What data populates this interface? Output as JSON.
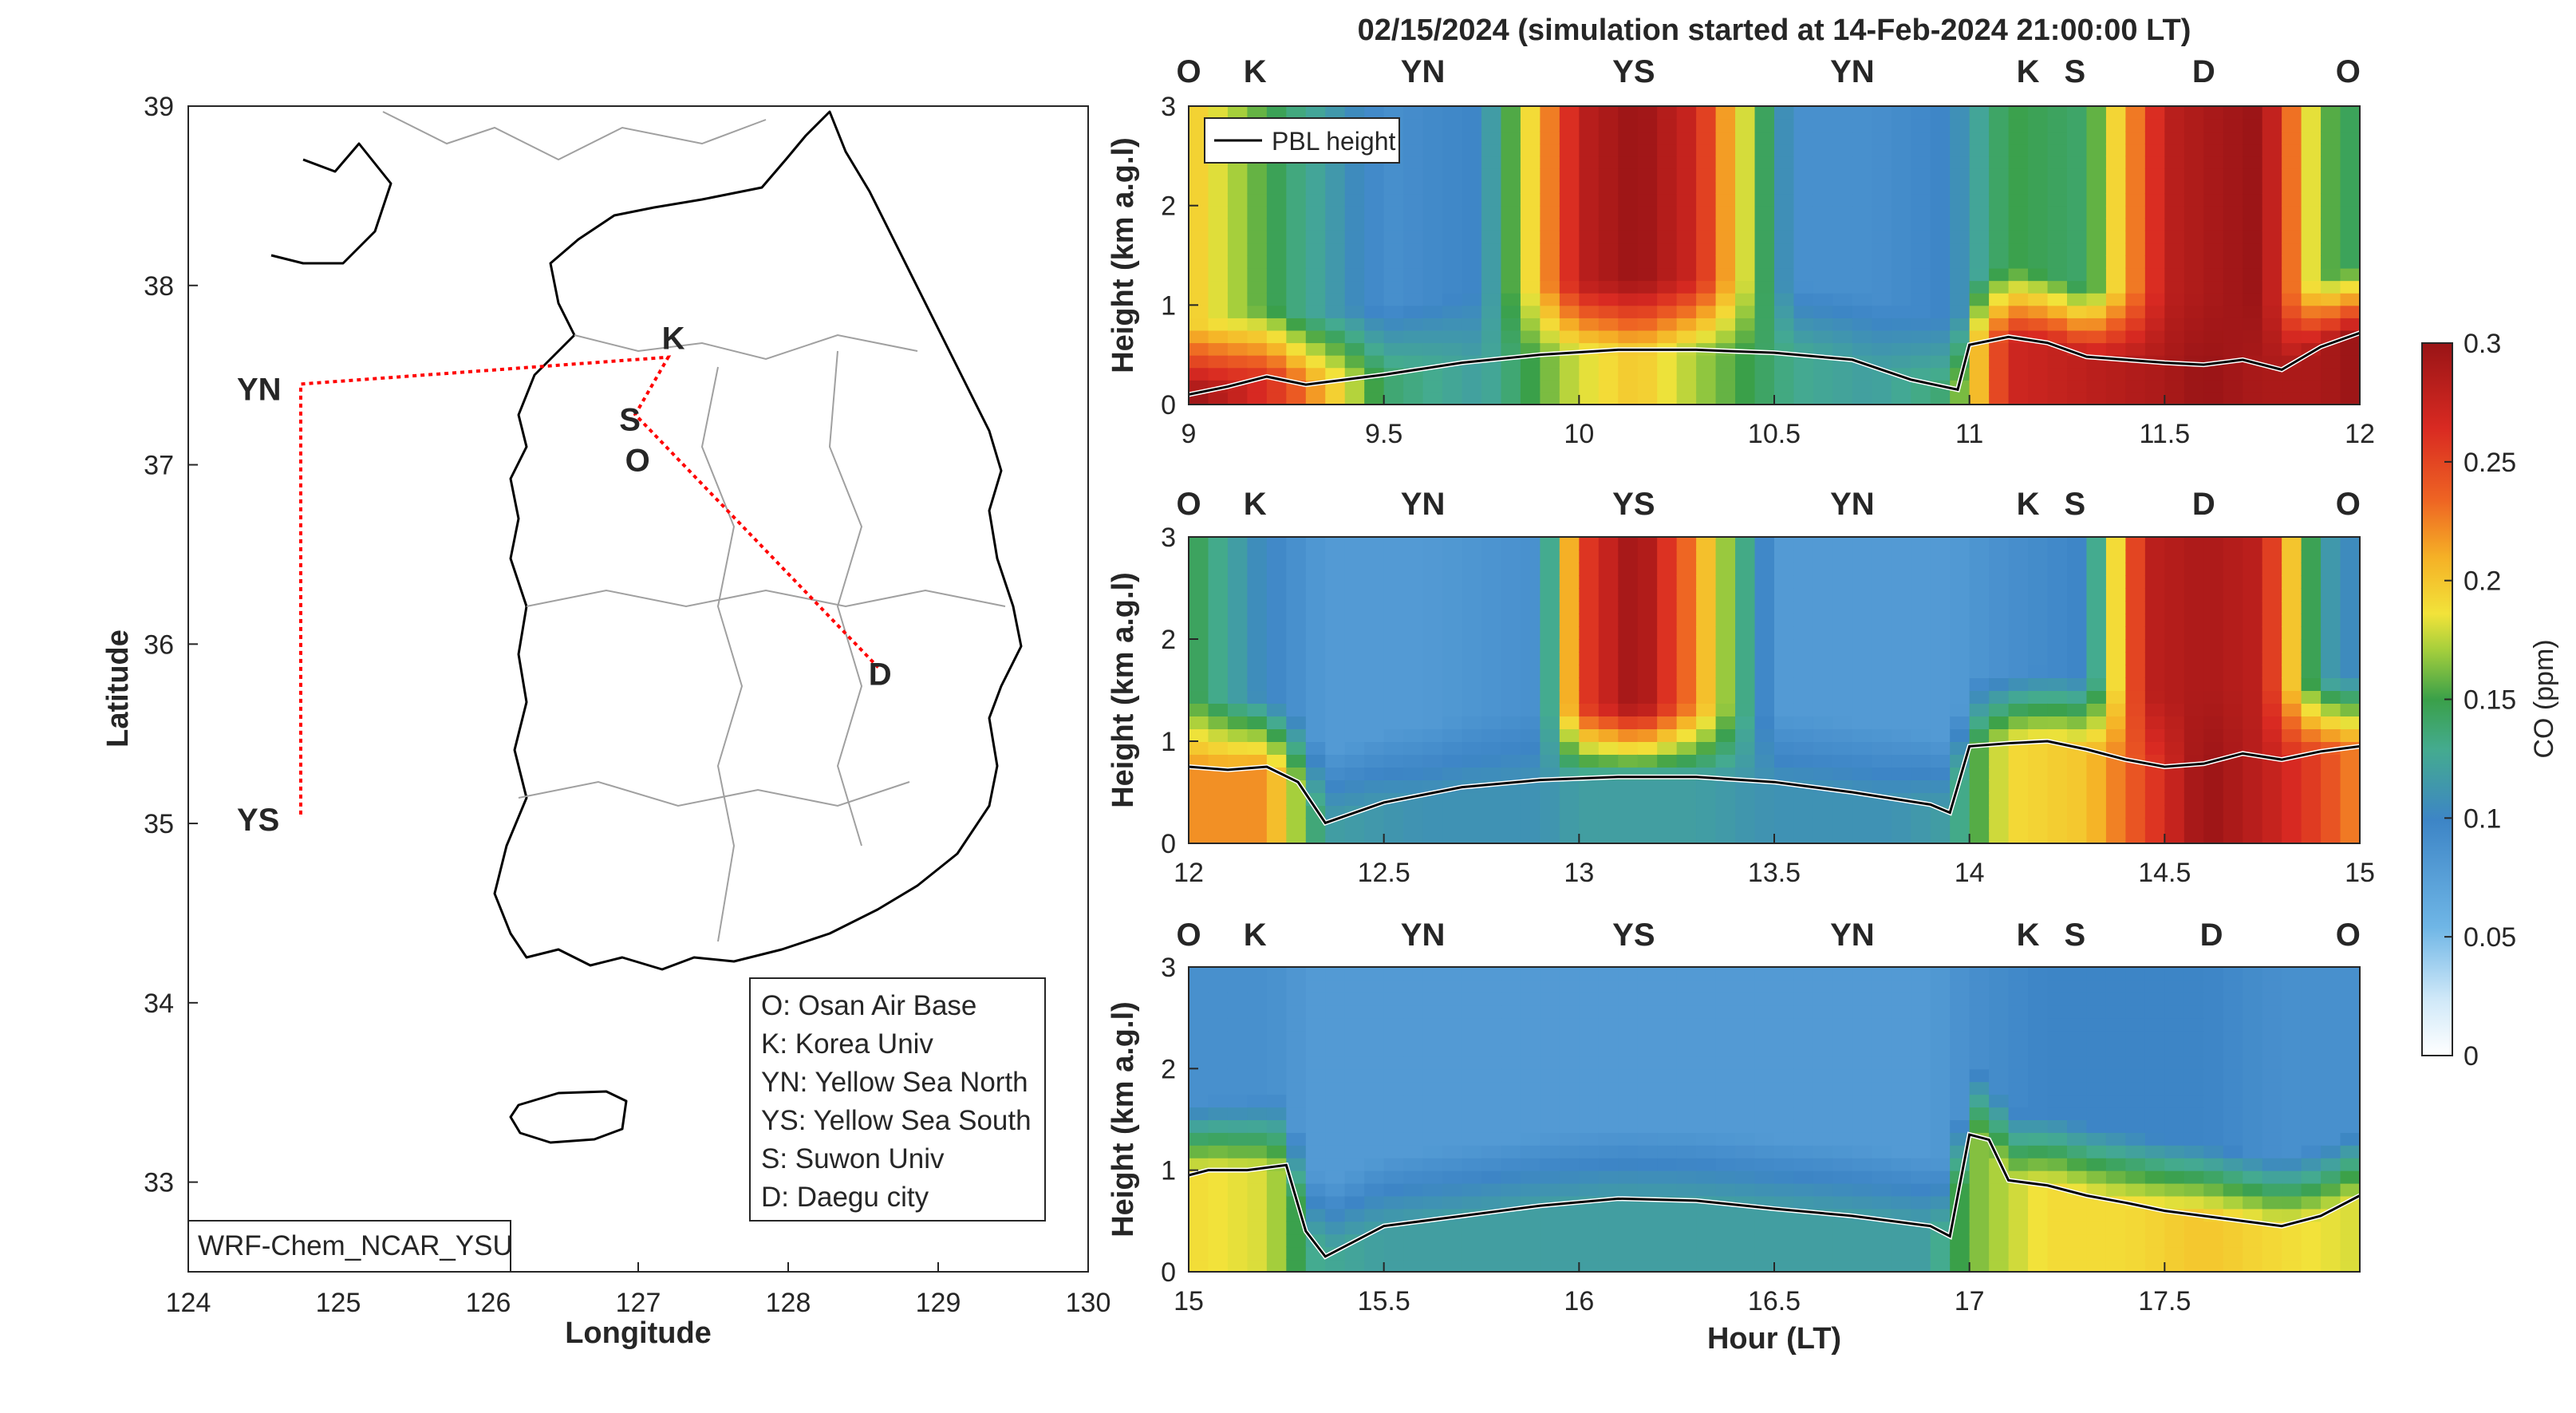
{
  "title": "02/15/2024 (simulation started at 14-Feb-2024 21:00:00 LT)",
  "colors": {
    "O": "#000000",
    "K": "#4db8ea",
    "YN": "#6fab2f",
    "YS": "#f0b428",
    "S": "#7b2d8e",
    "D": "#e05a1a",
    "track": "#ff0000",
    "pbl": "#000000"
  },
  "map": {
    "xlabel": "Longitude",
    "ylabel": "Latitude",
    "x_ticks": [
      "124",
      "125",
      "126",
      "127",
      "128",
      "129",
      "130"
    ],
    "y_ticks": [
      "33",
      "34",
      "35",
      "36",
      "37",
      "38",
      "39"
    ],
    "xlim": [
      124,
      130
    ],
    "ylim": [
      32.5,
      39
    ],
    "model_label": "WRF-Chem_NCAR_YSU",
    "legend": [
      "O: Osan Air Base",
      "K: Korea Univ",
      "YN: Yellow Sea North",
      "YS: Yellow Sea South",
      "S: Suwon Univ",
      "D: Daegu city"
    ],
    "sites": [
      {
        "key": "YN",
        "label": "YN",
        "lon": 124.75,
        "lat": 37.45
      },
      {
        "key": "YS",
        "label": "YS",
        "lon": 124.75,
        "lat": 35.05
      },
      {
        "key": "K",
        "label": "K",
        "lon": 127.2,
        "lat": 37.6
      },
      {
        "key": "S",
        "label": "S",
        "lon": 126.98,
        "lat": 37.28
      },
      {
        "key": "O",
        "label": "O",
        "lon": 127.03,
        "lat": 37.09
      },
      {
        "key": "D",
        "label": "D",
        "lon": 128.6,
        "lat": 35.87
      }
    ]
  },
  "chart_data": [
    {
      "type": "heatmap",
      "xlabel": "",
      "ylabel": "Height (km a.g.l)",
      "xlim": [
        9,
        12
      ],
      "ylim": [
        0,
        3
      ],
      "x_ticks": [
        "9",
        "9.5",
        "10",
        "10.5",
        "11",
        "11.5",
        "12"
      ],
      "y_ticks": [
        "0",
        "1",
        "2",
        "3"
      ],
      "site_labels": [
        {
          "label": "O",
          "key": "O",
          "t": 9.0
        },
        {
          "label": "K",
          "key": "K",
          "t": 9.17
        },
        {
          "label": "YN",
          "key": "YN",
          "t": 9.6
        },
        {
          "label": "YS",
          "key": "YS",
          "t": 10.14
        },
        {
          "label": "YN",
          "key": "YN",
          "t": 10.7
        },
        {
          "label": "K",
          "key": "K",
          "t": 11.15
        },
        {
          "label": "S",
          "key": "S",
          "t": 11.27
        },
        {
          "label": "D",
          "key": "D",
          "t": 11.6
        },
        {
          "label": "O",
          "key": "O",
          "t": 11.97
        }
      ],
      "legend": "PBL height",
      "pbl_height": {
        "x": [
          9.0,
          9.1,
          9.2,
          9.3,
          9.5,
          9.7,
          9.9,
          10.1,
          10.3,
          10.5,
          10.7,
          10.85,
          10.97,
          11.0,
          11.1,
          11.2,
          11.3,
          11.4,
          11.5,
          11.6,
          11.7,
          11.8,
          11.9,
          12.0
        ],
        "y": [
          0.1,
          0.18,
          0.28,
          0.2,
          0.3,
          0.42,
          0.5,
          0.55,
          0.55,
          0.52,
          0.45,
          0.25,
          0.15,
          0.6,
          0.68,
          0.62,
          0.48,
          0.45,
          0.42,
          0.4,
          0.45,
          0.35,
          0.58,
          0.72
        ]
      },
      "co_ppm_columns": {
        "x": [
          9.0,
          9.25,
          9.5,
          9.75,
          10.0,
          10.15,
          10.3,
          10.55,
          10.75,
          10.95,
          11.1,
          11.3,
          11.5,
          11.6,
          11.75,
          11.9,
          12.0
        ],
        "near_surface": [
          0.3,
          0.25,
          0.14,
          0.12,
          0.18,
          0.2,
          0.17,
          0.13,
          0.12,
          0.14,
          0.27,
          0.28,
          0.29,
          0.3,
          0.29,
          0.29,
          0.3
        ],
        "aloft": [
          0.2,
          0.14,
          0.09,
          0.1,
          0.28,
          0.3,
          0.27,
          0.09,
          0.09,
          0.1,
          0.15,
          0.14,
          0.28,
          0.29,
          0.3,
          0.16,
          0.14
        ]
      }
    },
    {
      "type": "heatmap",
      "xlabel": "",
      "ylabel": "Height (km a.g.l)",
      "xlim": [
        12,
        15
      ],
      "ylim": [
        0,
        3
      ],
      "x_ticks": [
        "12",
        "12.5",
        "13",
        "13.5",
        "14",
        "14.5",
        "15"
      ],
      "y_ticks": [
        "0",
        "1",
        "2",
        "3"
      ],
      "site_labels": [
        {
          "label": "O",
          "key": "O",
          "t": 12.0
        },
        {
          "label": "K",
          "key": "K",
          "t": 12.17
        },
        {
          "label": "YN",
          "key": "YN",
          "t": 12.6
        },
        {
          "label": "YS",
          "key": "YS",
          "t": 13.14
        },
        {
          "label": "YN",
          "key": "YN",
          "t": 13.7
        },
        {
          "label": "K",
          "key": "K",
          "t": 14.15
        },
        {
          "label": "S",
          "key": "S",
          "t": 14.27
        },
        {
          "label": "D",
          "key": "D",
          "t": 14.6
        },
        {
          "label": "O",
          "key": "O",
          "t": 14.97
        }
      ],
      "legend": "PBL height",
      "pbl_height": {
        "x": [
          12.0,
          12.1,
          12.2,
          12.28,
          12.35,
          12.5,
          12.7,
          12.9,
          13.1,
          13.3,
          13.5,
          13.7,
          13.9,
          13.95,
          14.0,
          14.1,
          14.2,
          14.3,
          14.4,
          14.5,
          14.6,
          14.7,
          14.8,
          14.9,
          15.0
        ],
        "y": [
          0.75,
          0.72,
          0.75,
          0.6,
          0.2,
          0.4,
          0.55,
          0.62,
          0.65,
          0.65,
          0.6,
          0.5,
          0.38,
          0.3,
          0.95,
          0.98,
          1.0,
          0.92,
          0.82,
          0.75,
          0.78,
          0.88,
          0.82,
          0.9,
          0.95
        ]
      },
      "co_ppm_columns": {
        "x": [
          12.0,
          12.2,
          12.35,
          12.6,
          12.9,
          13.0,
          13.15,
          13.3,
          13.5,
          13.8,
          13.95,
          14.1,
          14.3,
          14.45,
          14.6,
          14.75,
          14.9,
          15.0
        ],
        "near_surface": [
          0.22,
          0.22,
          0.12,
          0.11,
          0.11,
          0.12,
          0.12,
          0.12,
          0.11,
          0.11,
          0.12,
          0.19,
          0.2,
          0.25,
          0.3,
          0.28,
          0.25,
          0.22
        ],
        "aloft": [
          0.15,
          0.1,
          0.08,
          0.08,
          0.09,
          0.25,
          0.3,
          0.22,
          0.08,
          0.08,
          0.08,
          0.09,
          0.1,
          0.28,
          0.29,
          0.28,
          0.12,
          0.1
        ]
      }
    },
    {
      "type": "heatmap",
      "xlabel": "Hour (LT)",
      "ylabel": "Height (km a.g.l)",
      "xlim": [
        15,
        18
      ],
      "ylim": [
        0,
        3
      ],
      "x_ticks": [
        "15",
        "15.5",
        "16",
        "16.5",
        "17",
        "17.5"
      ],
      "y_ticks": [
        "0",
        "1",
        "2",
        "3"
      ],
      "site_labels": [
        {
          "label": "O",
          "key": "O",
          "t": 15.0
        },
        {
          "label": "K",
          "key": "K",
          "t": 15.17
        },
        {
          "label": "YN",
          "key": "YN",
          "t": 15.6
        },
        {
          "label": "YS",
          "key": "YS",
          "t": 16.14
        },
        {
          "label": "YN",
          "key": "YN",
          "t": 16.7
        },
        {
          "label": "K",
          "key": "K",
          "t": 17.15
        },
        {
          "label": "S",
          "key": "S",
          "t": 17.27
        },
        {
          "label": "D",
          "key": "D",
          "t": 17.62
        },
        {
          "label": "O",
          "key": "O",
          "t": 17.97
        }
      ],
      "legend": "PBL height",
      "pbl_height": {
        "x": [
          15.0,
          15.05,
          15.15,
          15.25,
          15.3,
          15.35,
          15.5,
          15.7,
          15.9,
          16.1,
          16.3,
          16.5,
          16.7,
          16.9,
          16.95,
          17.0,
          17.05,
          17.1,
          17.2,
          17.3,
          17.4,
          17.5,
          17.6,
          17.7,
          17.8,
          17.9,
          18.0
        ],
        "y": [
          0.95,
          1.0,
          1.0,
          1.05,
          0.4,
          0.15,
          0.45,
          0.55,
          0.65,
          0.72,
          0.7,
          0.62,
          0.55,
          0.45,
          0.35,
          1.35,
          1.3,
          0.9,
          0.85,
          0.75,
          0.68,
          0.6,
          0.55,
          0.5,
          0.45,
          0.55,
          0.75
        ]
      },
      "co_ppm_columns": {
        "x": [
          15.0,
          15.2,
          15.32,
          15.5,
          15.8,
          16.1,
          16.5,
          16.9,
          17.0,
          17.2,
          17.4,
          17.6,
          17.8,
          18.0
        ],
        "near_surface": [
          0.19,
          0.18,
          0.13,
          0.12,
          0.12,
          0.12,
          0.12,
          0.12,
          0.16,
          0.19,
          0.19,
          0.2,
          0.19,
          0.18
        ],
        "aloft": [
          0.09,
          0.09,
          0.08,
          0.08,
          0.08,
          0.08,
          0.08,
          0.08,
          0.09,
          0.1,
          0.1,
          0.1,
          0.09,
          0.09
        ]
      }
    }
  ],
  "colorbar": {
    "label": "CO (ppm)",
    "ticks": [
      "0",
      "0.05",
      "0.1",
      "0.15",
      "0.2",
      "0.25",
      "0.3"
    ],
    "range": [
      0,
      0.3
    ]
  }
}
